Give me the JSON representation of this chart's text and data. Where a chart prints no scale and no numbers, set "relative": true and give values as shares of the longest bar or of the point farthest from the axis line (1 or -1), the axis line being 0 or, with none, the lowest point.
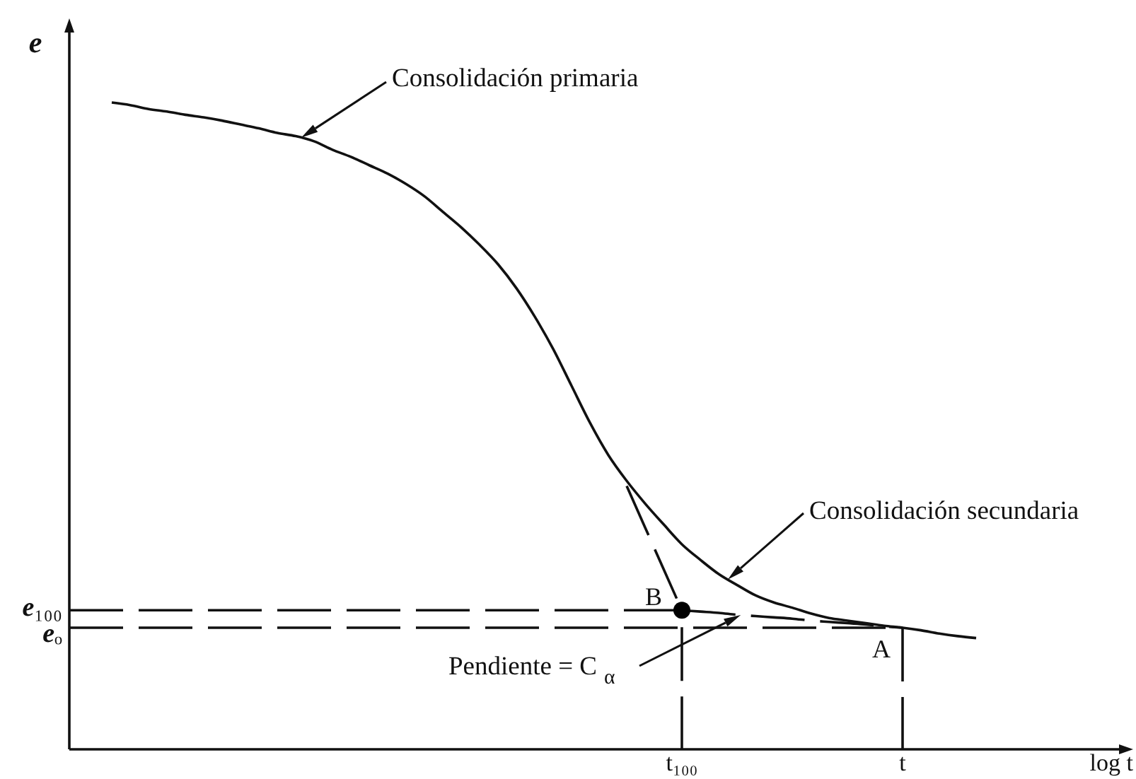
{
  "chart_data": {
    "type": "line",
    "relative": true,
    "ylabel": "e",
    "xlabel": "log t",
    "categories": [
      null,
      null,
      null,
      null,
      null,
      null,
      null,
      null,
      null,
      null,
      null,
      null,
      null,
      null,
      null,
      null,
      null,
      null,
      null,
      null,
      null,
      null,
      null,
      null,
      null,
      null,
      null,
      null,
      null,
      null,
      null,
      "t₁₀₀",
      null,
      null,
      null,
      null,
      null,
      null,
      null,
      null,
      null,
      null,
      null,
      "t",
      null,
      null,
      null,
      null
    ],
    "series": [
      {
        "color": "#111111",
        "line_style": "solid",
        "values": [
          1,
          0.996,
          0.99,
          0.986,
          0.981,
          0.977,
          0.972,
          0.966,
          0.96,
          0.953,
          0.948,
          0.94,
          0.927,
          0.916,
          0.903,
          0.89,
          0.874,
          0.855,
          0.831,
          0.807,
          0.78,
          0.75,
          0.713,
          0.669,
          0.619,
          0.562,
          0.505,
          0.455,
          0.415,
          0.38,
          0.348,
          0.317,
          0.293,
          0.271,
          0.254,
          0.238,
          0.227,
          0.219,
          0.21,
          0.203,
          0.199,
          0.195,
          0.191,
          0.188,
          0.184,
          0.179,
          0.175,
          0.172
        ]
      },
      {
        "color": "#111111",
        "line_style": "dashed",
        "values": [
          null,
          null,
          null,
          null,
          null,
          null,
          null,
          null,
          null,
          null,
          null,
          null,
          null,
          null,
          null,
          null,
          null,
          null,
          null,
          null,
          null,
          null,
          null,
          null,
          null,
          null,
          null,
          null,
          0.407,
          0.343,
          0.279,
          0.215,
          null,
          null,
          null,
          null,
          null,
          null,
          null,
          null,
          null,
          null,
          null,
          null,
          null,
          null,
          null,
          null
        ]
      },
      {
        "color": "#111111",
        "line_style": "dashed",
        "values": [
          null,
          null,
          null,
          null,
          null,
          null,
          null,
          null,
          null,
          null,
          null,
          null,
          null,
          null,
          null,
          null,
          null,
          null,
          null,
          null,
          null,
          null,
          null,
          null,
          null,
          null,
          null,
          null,
          null,
          null,
          null,
          0.215,
          0.213,
          0.211,
          0.208,
          0.206,
          0.204,
          0.202,
          0.199,
          0.197,
          0.195,
          0.193,
          0.19,
          0.188,
          null,
          null,
          null,
          null
        ]
      },
      {
        "type": "scatter",
        "color": "#000000",
        "marker": "circle",
        "values": [
          null,
          null,
          null,
          null,
          null,
          null,
          null,
          null,
          null,
          null,
          null,
          null,
          null,
          null,
          null,
          null,
          null,
          null,
          null,
          null,
          null,
          null,
          null,
          null,
          null,
          null,
          null,
          null,
          null,
          null,
          null,
          0.215,
          null,
          null,
          null,
          null,
          null,
          null,
          null,
          null,
          null,
          null,
          null,
          null,
          null,
          null,
          null,
          null
        ]
      }
    ],
    "ref_lines": [
      {
        "axis": "y",
        "value": 0.215,
        "label": "e₁₀₀",
        "line_style": "dashed",
        "color": "#111111"
      },
      {
        "axis": "y",
        "value": 0.188,
        "label": "eₒ",
        "line_style": "dashed",
        "color": "#111111"
      },
      {
        "axis": "x",
        "value": "t₁₀₀",
        "line_style": "dashed",
        "color": "#111111"
      },
      {
        "axis": "x",
        "value": "t",
        "line_style": "dashed",
        "color": "#111111"
      }
    ],
    "annotations": [
      "Consolidación primaria",
      "Consolidación secundaria",
      "Pendiente = C$_{α}$",
      {
        "text": "B",
        "x": "t₁₀₀",
        "y": 0.215
      },
      {
        "text": "A",
        "x": "t",
        "y": 0.188
      }
    ]
  }
}
